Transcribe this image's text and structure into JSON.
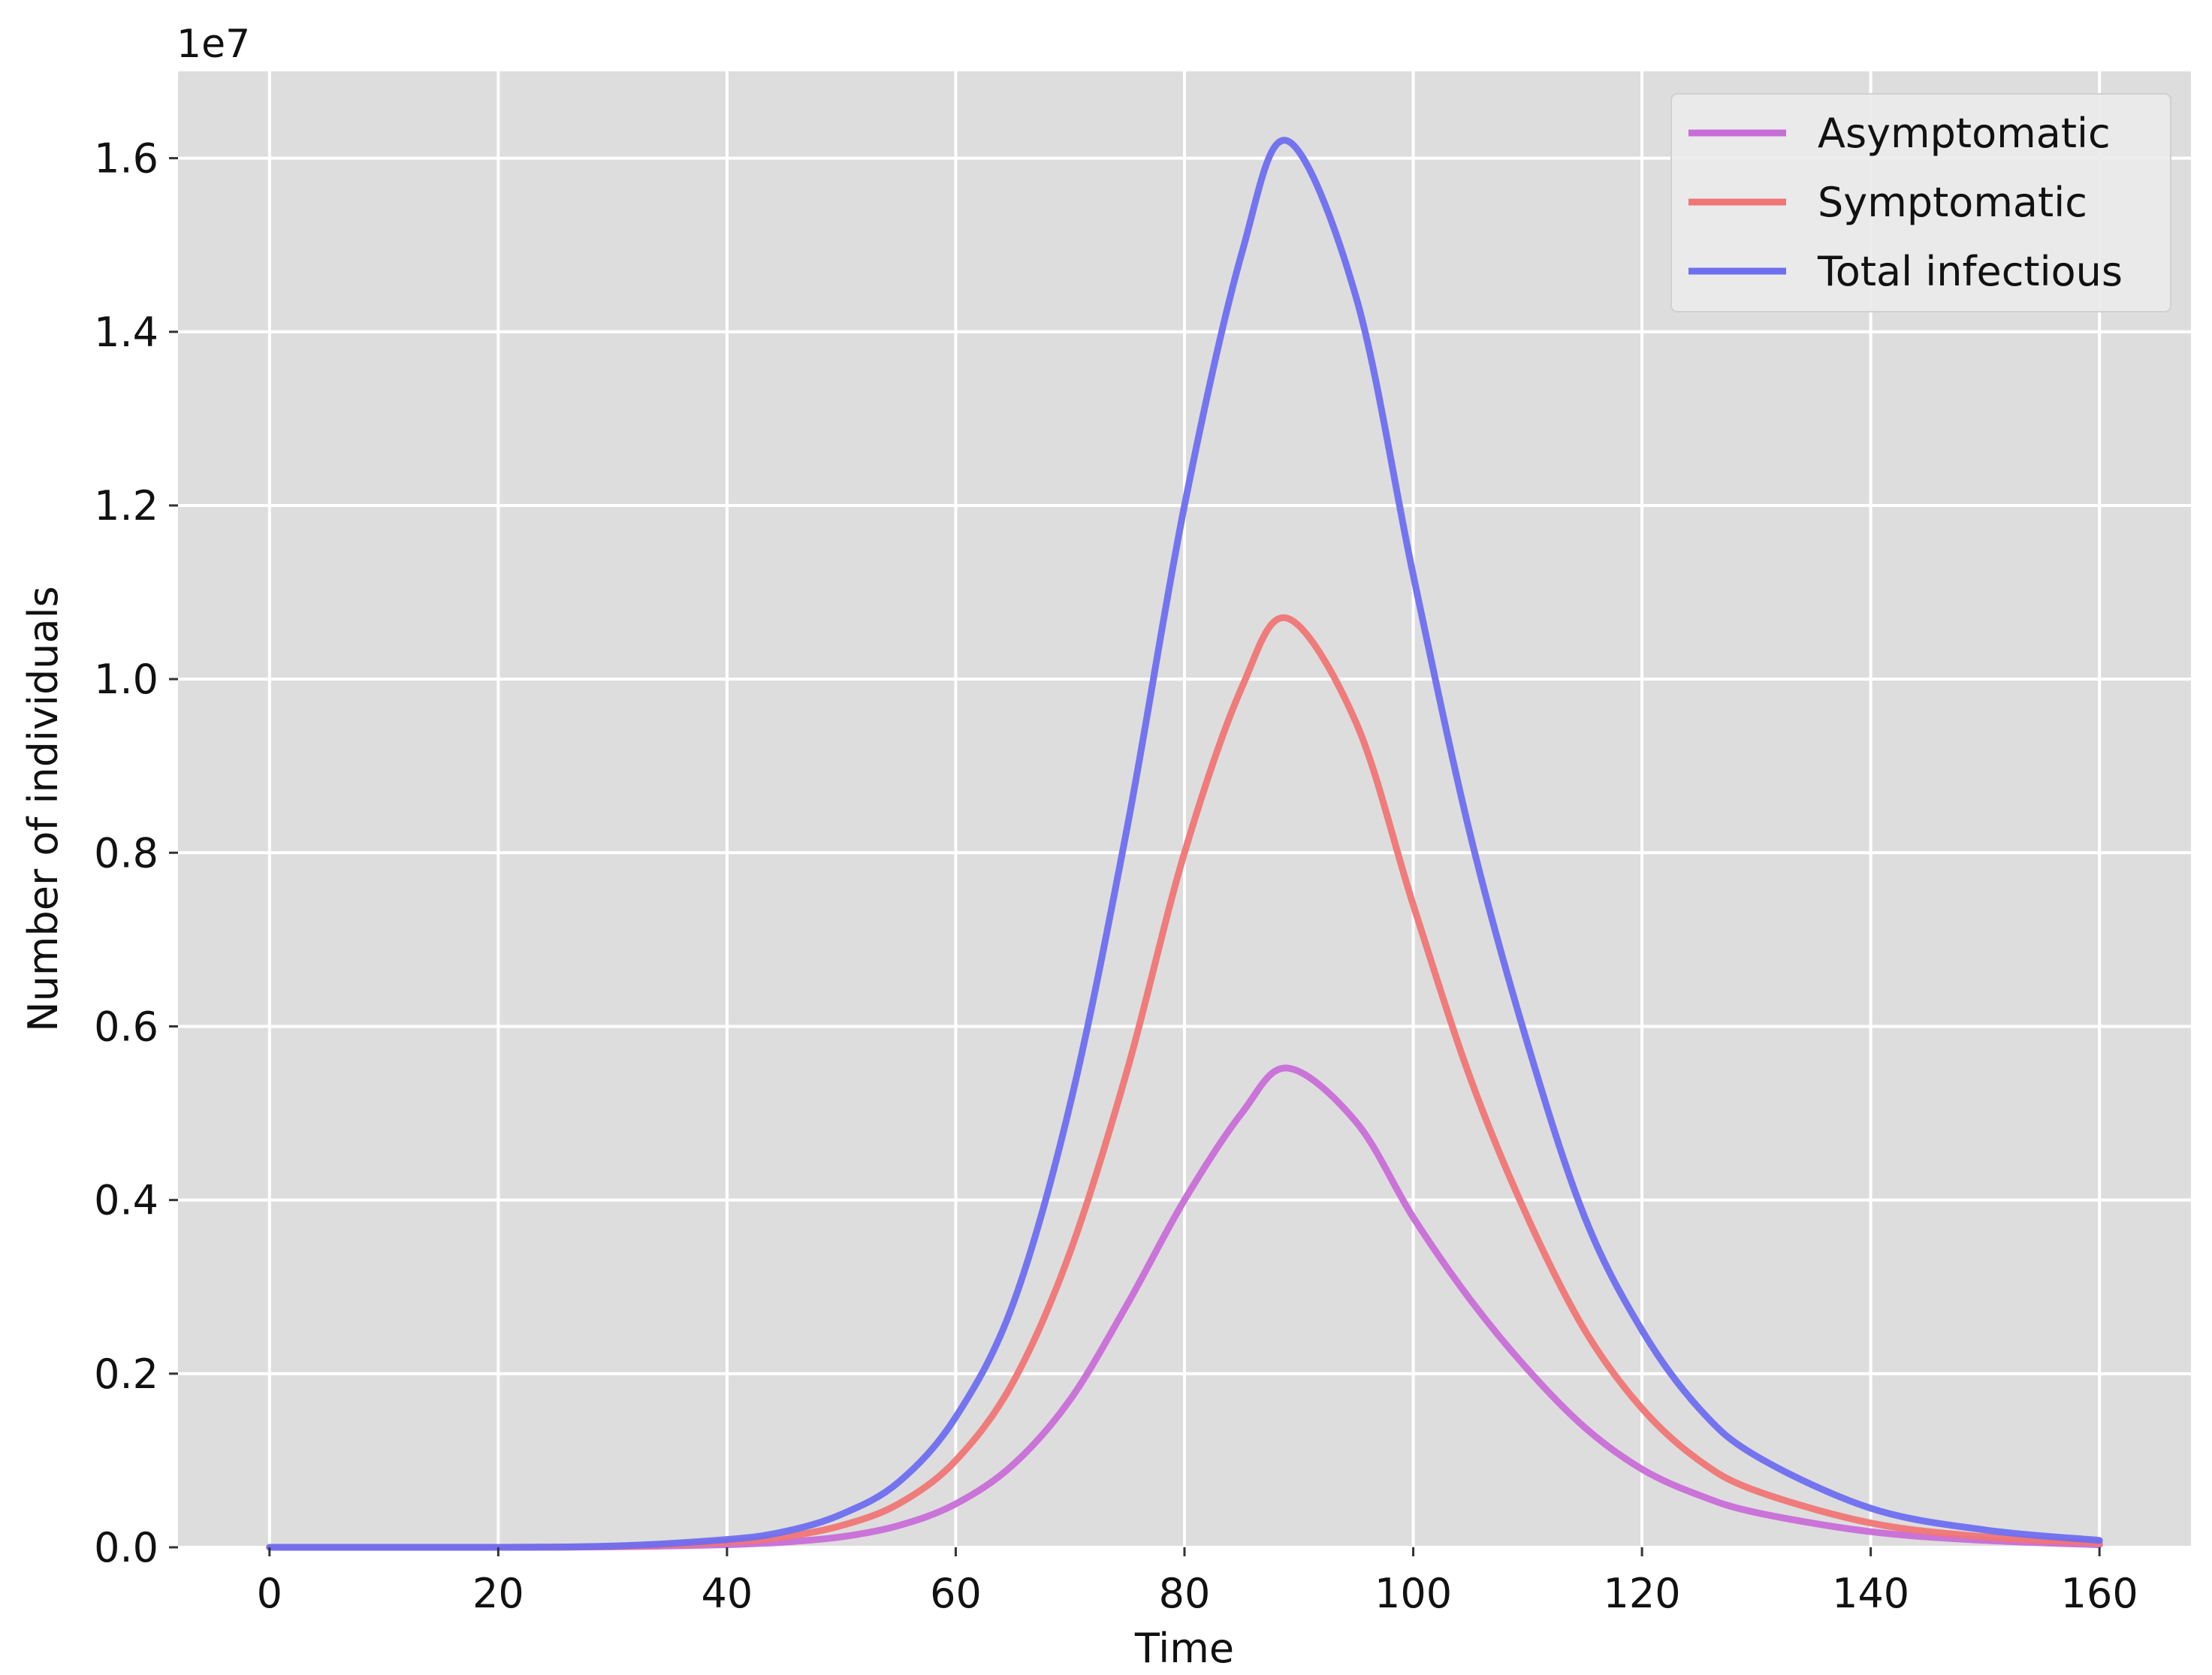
{
  "chart_data": {
    "type": "line",
    "title": "",
    "xlabel": "Time",
    "ylabel": "Number of individuals",
    "y_offset_label": "1e7",
    "xlim": [
      -8,
      168
    ],
    "ylim": [
      0,
      17000000
    ],
    "x_ticks": [
      0,
      20,
      40,
      60,
      80,
      100,
      120,
      140,
      160
    ],
    "x_tick_labels": [
      "0",
      "20",
      "40",
      "60",
      "80",
      "100",
      "120",
      "140",
      "160"
    ],
    "y_ticks": [
      0,
      2000000,
      4000000,
      6000000,
      8000000,
      10000000,
      12000000,
      14000000,
      16000000
    ],
    "y_tick_labels": [
      "0.0",
      "0.2",
      "0.4",
      "0.6",
      "0.8",
      "1.0",
      "1.2",
      "1.4",
      "1.6"
    ],
    "grid": true,
    "legend_position": "top-right",
    "background_color": "#dddddd",
    "x": [
      0,
      10,
      20,
      30,
      40,
      45,
      50,
      55,
      60,
      65,
      70,
      75,
      80,
      85,
      89,
      95,
      100,
      105,
      110,
      115,
      120,
      125,
      130,
      140,
      150,
      160
    ],
    "series": [
      {
        "name": "Asymptomatic",
        "color": "#c86dd7",
        "values": [
          0,
          0,
          0,
          5000,
          30000,
          60000,
          120000,
          250000,
          500000,
          950000,
          1700000,
          2800000,
          4000000,
          5000000,
          5520000,
          4900000,
          3800000,
          2850000,
          2050000,
          1380000,
          900000,
          600000,
          400000,
          180000,
          80000,
          30000
        ]
      },
      {
        "name": "Symptomatic",
        "color": "#f07575",
        "values": [
          0,
          0,
          0,
          10000,
          60000,
          120000,
          250000,
          500000,
          1000000,
          1900000,
          3400000,
          5500000,
          8000000,
          9900000,
          10700000,
          9500000,
          7400000,
          5400000,
          3800000,
          2500000,
          1600000,
          1000000,
          650000,
          280000,
          120000,
          50000
        ]
      },
      {
        "name": "Total infectious",
        "color": "#6e6ef0",
        "values": [
          0,
          0,
          0,
          15000,
          90000,
          180000,
          380000,
          750000,
          1500000,
          2800000,
          5100000,
          8300000,
          12000000,
          14900000,
          16200000,
          14400000,
          11200000,
          8200000,
          5800000,
          3800000,
          2500000,
          1600000,
          1050000,
          450000,
          200000,
          80000
        ]
      }
    ]
  }
}
